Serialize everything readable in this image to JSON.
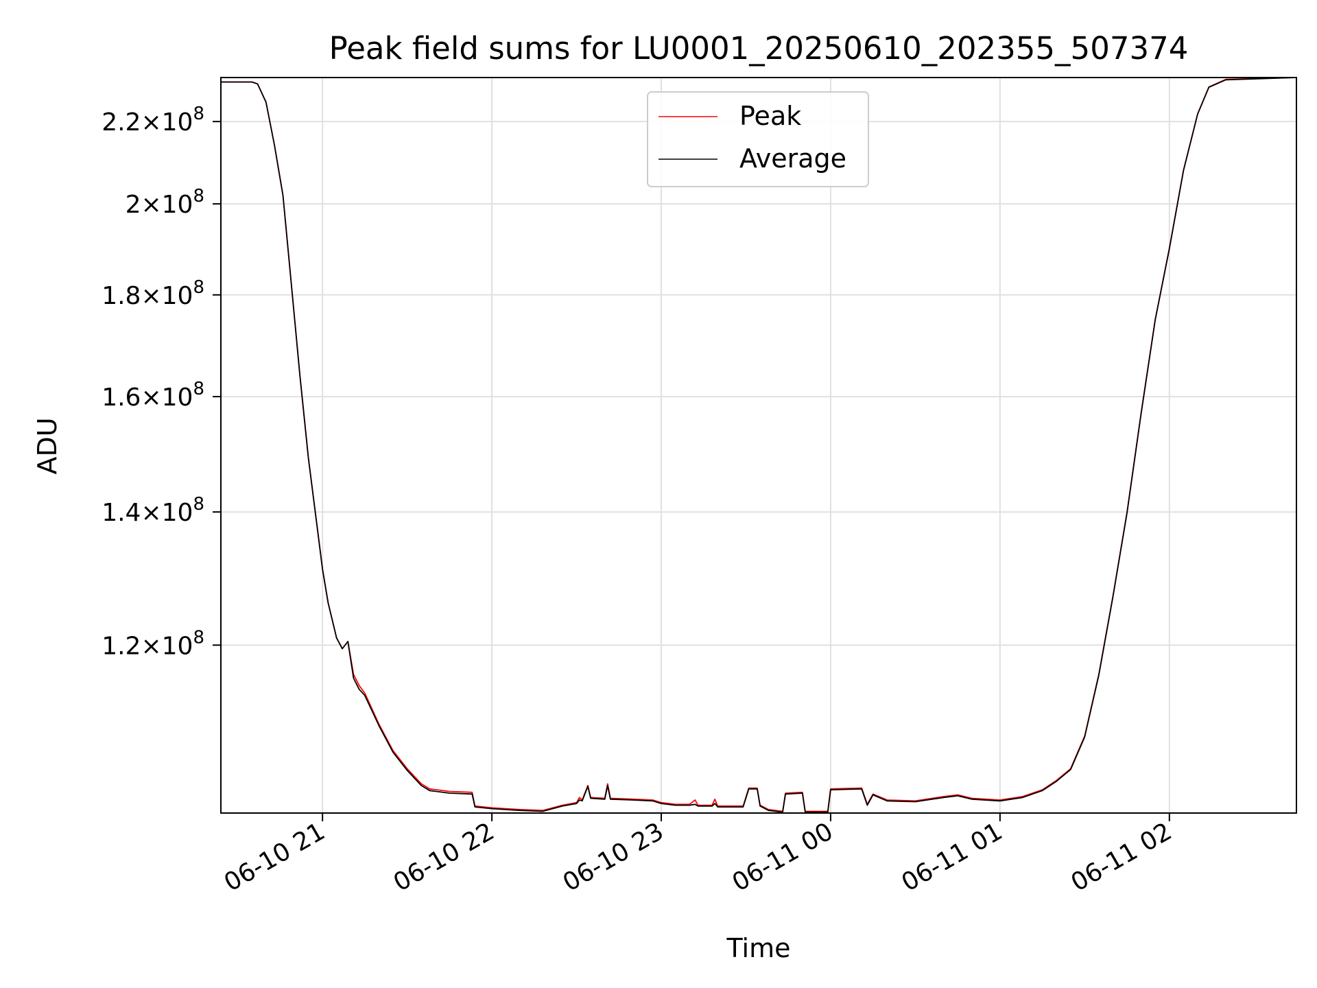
{
  "chart_data": {
    "type": "line",
    "title": "Peak field sums for LU0001_20250610_202355_507374",
    "xlabel": "Time",
    "ylabel": "ADU",
    "y_scale": "log",
    "grid": true,
    "legend_position": "top-center",
    "x_range": [
      "2025-06-10 20:24",
      "2025-06-11 02:45"
    ],
    "ylim": [
      98800000,
      231500000
    ],
    "x_ticks": [
      {
        "value": "2025-06-10 21:00",
        "label": "06-10 21"
      },
      {
        "value": "2025-06-10 22:00",
        "label": "06-10 22"
      },
      {
        "value": "2025-06-10 23:00",
        "label": "06-10 23"
      },
      {
        "value": "2025-06-11 00:00",
        "label": "06-11 00"
      },
      {
        "value": "2025-06-11 01:00",
        "label": "06-11 01"
      },
      {
        "value": "2025-06-11 02:00",
        "label": "06-11 02"
      }
    ],
    "y_ticks": [
      {
        "value": 120000000,
        "mantissa": "1.2"
      },
      {
        "value": 140000000,
        "mantissa": "1.4"
      },
      {
        "value": 160000000,
        "mantissa": "1.6"
      },
      {
        "value": 180000000,
        "mantissa": "1.8"
      },
      {
        "value": 200000000,
        "mantissa": "2"
      },
      {
        "value": 220000000,
        "mantissa": "2.2"
      }
    ],
    "y_tick_base": "10",
    "y_tick_exponent": "8",
    "series": [
      {
        "name": "Peak",
        "color": "#ff0000",
        "points": [
          [
            "2025-06-10 20:24",
            230300000
          ],
          [
            "2025-06-10 20:35",
            230300000
          ],
          [
            "2025-06-10 20:37",
            229800000
          ],
          [
            "2025-06-10 20:40",
            225000000
          ],
          [
            "2025-06-10 20:43",
            214000000
          ],
          [
            "2025-06-10 20:46",
            202000000
          ],
          [
            "2025-06-10 20:49",
            182000000
          ],
          [
            "2025-06-10 20:52",
            164000000
          ],
          [
            "2025-06-10 20:55",
            149000000
          ],
          [
            "2025-06-10 20:58",
            138000000
          ],
          [
            "2025-06-10 21:00",
            131000000
          ],
          [
            "2025-06-10 21:02",
            126000000
          ],
          [
            "2025-06-10 21:05",
            121000000
          ],
          [
            "2025-06-10 21:07",
            119500000
          ],
          [
            "2025-06-10 21:09",
            120500000
          ],
          [
            "2025-06-10 21:11",
            116000000
          ],
          [
            "2025-06-10 21:13",
            114500000
          ],
          [
            "2025-06-10 21:15",
            113500000
          ],
          [
            "2025-06-10 21:20",
            109500000
          ],
          [
            "2025-06-10 21:25",
            106200000
          ],
          [
            "2025-06-10 21:30",
            104000000
          ],
          [
            "2025-06-10 21:35",
            102200000
          ],
          [
            "2025-06-10 21:38",
            101600000
          ],
          [
            "2025-06-10 21:45",
            101300000
          ],
          [
            "2025-06-10 21:53",
            101200000
          ],
          [
            "2025-06-10 21:54",
            99600000
          ],
          [
            "2025-06-10 22:00",
            99400000
          ],
          [
            "2025-06-10 22:10",
            99200000
          ],
          [
            "2025-06-10 22:18",
            99100000
          ],
          [
            "2025-06-10 22:25",
            99700000
          ],
          [
            "2025-06-10 22:30",
            100000000
          ],
          [
            "2025-06-10 22:31",
            100600000
          ],
          [
            "2025-06-10 22:32",
            100300000
          ],
          [
            "2025-06-10 22:34",
            102000000
          ],
          [
            "2025-06-10 22:35",
            100600000
          ],
          [
            "2025-06-10 22:40",
            100500000
          ],
          [
            "2025-06-10 22:41",
            102200000
          ],
          [
            "2025-06-10 22:42",
            100500000
          ],
          [
            "2025-06-10 22:50",
            100400000
          ],
          [
            "2025-06-10 22:57",
            100300000
          ],
          [
            "2025-06-10 23:00",
            100000000
          ],
          [
            "2025-06-10 23:05",
            99800000
          ],
          [
            "2025-06-10 23:10",
            99800000
          ],
          [
            "2025-06-10 23:12",
            100300000
          ],
          [
            "2025-06-10 23:13",
            99700000
          ],
          [
            "2025-06-10 23:18",
            99700000
          ],
          [
            "2025-06-10 23:19",
            100400000
          ],
          [
            "2025-06-10 23:20",
            99600000
          ],
          [
            "2025-06-10 23:29",
            99600000
          ],
          [
            "2025-06-10 23:31",
            101700000
          ],
          [
            "2025-06-10 23:34",
            101700000
          ],
          [
            "2025-06-10 23:35",
            99700000
          ],
          [
            "2025-06-10 23:38",
            99200000
          ],
          [
            "2025-06-10 23:43",
            99000000
          ],
          [
            "2025-06-10 23:44",
            101100000
          ],
          [
            "2025-06-10 23:50",
            101200000
          ],
          [
            "2025-06-10 23:51",
            99000000
          ],
          [
            "2025-06-10 23:59",
            99000000
          ],
          [
            "2025-06-11 00:00",
            101600000
          ],
          [
            "2025-06-11 00:11",
            101700000
          ],
          [
            "2025-06-11 00:13",
            99800000
          ],
          [
            "2025-06-11 00:15",
            101000000
          ],
          [
            "2025-06-11 00:20",
            100300000
          ],
          [
            "2025-06-11 00:30",
            100200000
          ],
          [
            "2025-06-11 00:40",
            100700000
          ],
          [
            "2025-06-11 00:45",
            100900000
          ],
          [
            "2025-06-11 00:50",
            100500000
          ],
          [
            "2025-06-11 01:00",
            100300000
          ],
          [
            "2025-06-11 01:08",
            100700000
          ],
          [
            "2025-06-11 01:15",
            101500000
          ],
          [
            "2025-06-11 01:20",
            102600000
          ],
          [
            "2025-06-11 01:25",
            104000000
          ],
          [
            "2025-06-11 01:30",
            108000000
          ],
          [
            "2025-06-11 01:35",
            116000000
          ],
          [
            "2025-06-11 01:40",
            127000000
          ],
          [
            "2025-06-11 01:45",
            140000000
          ],
          [
            "2025-06-11 01:50",
            157000000
          ],
          [
            "2025-06-11 01:55",
            175000000
          ],
          [
            "2025-06-11 02:00",
            190000000
          ],
          [
            "2025-06-11 02:05",
            208000000
          ],
          [
            "2025-06-11 02:10",
            222000000
          ],
          [
            "2025-06-11 02:14",
            229000000
          ],
          [
            "2025-06-11 02:20",
            231000000
          ],
          [
            "2025-06-11 02:45",
            231500000
          ]
        ]
      },
      {
        "name": "Average",
        "color": "#000000",
        "points": [
          [
            "2025-06-10 20:24",
            230300000
          ],
          [
            "2025-06-10 20:35",
            230300000
          ],
          [
            "2025-06-10 20:37",
            229800000
          ],
          [
            "2025-06-10 20:40",
            225000000
          ],
          [
            "2025-06-10 20:43",
            214000000
          ],
          [
            "2025-06-10 20:46",
            202000000
          ],
          [
            "2025-06-10 20:49",
            182000000
          ],
          [
            "2025-06-10 20:52",
            164000000
          ],
          [
            "2025-06-10 20:55",
            149000000
          ],
          [
            "2025-06-10 20:58",
            138000000
          ],
          [
            "2025-06-10 21:00",
            131000000
          ],
          [
            "2025-06-10 21:02",
            126000000
          ],
          [
            "2025-06-10 21:05",
            121000000
          ],
          [
            "2025-06-10 21:07",
            119500000
          ],
          [
            "2025-06-10 21:09",
            120500000
          ],
          [
            "2025-06-10 21:11",
            115500000
          ],
          [
            "2025-06-10 21:13",
            114000000
          ],
          [
            "2025-06-10 21:15",
            113200000
          ],
          [
            "2025-06-10 21:20",
            109300000
          ],
          [
            "2025-06-10 21:25",
            106000000
          ],
          [
            "2025-06-10 21:30",
            103800000
          ],
          [
            "2025-06-10 21:35",
            102000000
          ],
          [
            "2025-06-10 21:38",
            101400000
          ],
          [
            "2025-06-10 21:45",
            101100000
          ],
          [
            "2025-06-10 21:53",
            101000000
          ],
          [
            "2025-06-10 21:54",
            99500000
          ],
          [
            "2025-06-10 22:00",
            99300000
          ],
          [
            "2025-06-10 22:10",
            99100000
          ],
          [
            "2025-06-10 22:18",
            99000000
          ],
          [
            "2025-06-10 22:25",
            99600000
          ],
          [
            "2025-06-10 22:30",
            99900000
          ],
          [
            "2025-06-10 22:31",
            100300000
          ],
          [
            "2025-06-10 22:32",
            100200000
          ],
          [
            "2025-06-10 22:34",
            101900000
          ],
          [
            "2025-06-10 22:35",
            100500000
          ],
          [
            "2025-06-10 22:40",
            100400000
          ],
          [
            "2025-06-10 22:41",
            102000000
          ],
          [
            "2025-06-10 22:42",
            100400000
          ],
          [
            "2025-06-10 22:50",
            100300000
          ],
          [
            "2025-06-10 22:57",
            100200000
          ],
          [
            "2025-06-10 23:00",
            99900000
          ],
          [
            "2025-06-10 23:05",
            99700000
          ],
          [
            "2025-06-10 23:10",
            99700000
          ],
          [
            "2025-06-10 23:12",
            99800000
          ],
          [
            "2025-06-10 23:13",
            99600000
          ],
          [
            "2025-06-10 23:18",
            99600000
          ],
          [
            "2025-06-10 23:19",
            99900000
          ],
          [
            "2025-06-10 23:20",
            99500000
          ],
          [
            "2025-06-10 23:29",
            99500000
          ],
          [
            "2025-06-10 23:31",
            101600000
          ],
          [
            "2025-06-10 23:34",
            101600000
          ],
          [
            "2025-06-10 23:35",
            99600000
          ],
          [
            "2025-06-10 23:38",
            99100000
          ],
          [
            "2025-06-10 23:43",
            98900000
          ],
          [
            "2025-06-10 23:44",
            101000000
          ],
          [
            "2025-06-10 23:50",
            101100000
          ],
          [
            "2025-06-10 23:51",
            98900000
          ],
          [
            "2025-06-10 23:59",
            98900000
          ],
          [
            "2025-06-11 00:00",
            101500000
          ],
          [
            "2025-06-11 00:11",
            101600000
          ],
          [
            "2025-06-11 00:13",
            99700000
          ],
          [
            "2025-06-11 00:15",
            100900000
          ],
          [
            "2025-06-11 00:20",
            100200000
          ],
          [
            "2025-06-11 00:30",
            100100000
          ],
          [
            "2025-06-11 00:40",
            100600000
          ],
          [
            "2025-06-11 00:45",
            100800000
          ],
          [
            "2025-06-11 00:50",
            100400000
          ],
          [
            "2025-06-11 01:00",
            100200000
          ],
          [
            "2025-06-11 01:08",
            100600000
          ],
          [
            "2025-06-11 01:15",
            101400000
          ],
          [
            "2025-06-11 01:20",
            102500000
          ],
          [
            "2025-06-11 01:25",
            103900000
          ],
          [
            "2025-06-11 01:30",
            107900000
          ],
          [
            "2025-06-11 01:35",
            115900000
          ],
          [
            "2025-06-11 01:40",
            126900000
          ],
          [
            "2025-06-11 01:45",
            139900000
          ],
          [
            "2025-06-11 01:50",
            156900000
          ],
          [
            "2025-06-11 01:55",
            174900000
          ],
          [
            "2025-06-11 02:00",
            189900000
          ],
          [
            "2025-06-11 02:05",
            207900000
          ],
          [
            "2025-06-11 02:10",
            221900000
          ],
          [
            "2025-06-11 02:14",
            228900000
          ],
          [
            "2025-06-11 02:20",
            230900000
          ],
          [
            "2025-06-11 02:45",
            231500000
          ]
        ]
      }
    ]
  }
}
